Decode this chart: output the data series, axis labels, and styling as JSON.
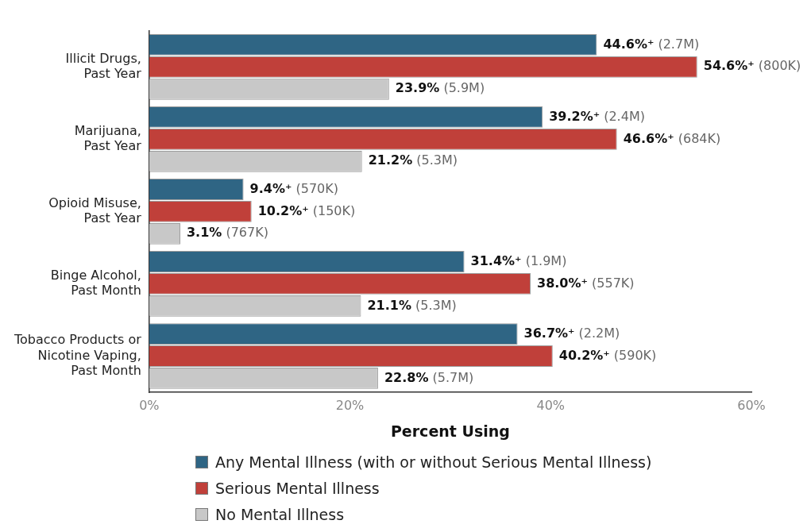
{
  "chart_data": {
    "type": "bar",
    "orientation": "horizontal",
    "categories": [
      "Illicit Drugs, Past Year",
      "Marijuana, Past Year",
      "Opioid Misuse, Past Year",
      "Binge Alcohol, Past Month",
      "Tobacco Products or Nicotine Vaping, Past Month"
    ],
    "series": [
      {
        "name": "Any Mental Illness (with or without Serious Mental Illness)",
        "color": "#2f6584",
        "values": [
          44.6,
          39.2,
          9.4,
          31.4,
          36.7
        ],
        "value_labels": [
          "44.6%⁺ (2.7M)",
          "39.2%⁺ (2.4M)",
          "9.4%⁺ (570K)",
          "31.4%⁺ (1.9M)",
          "36.7%⁺ (2.2M)"
        ]
      },
      {
        "name": "Serious Mental Illness",
        "color": "#c0403a",
        "values": [
          54.6,
          46.6,
          10.2,
          38.0,
          40.2
        ],
        "value_labels": [
          "54.6%⁺ (800K)",
          "46.6%⁺ (684K)",
          "10.2%⁺ (150K)",
          "38.0%⁺ (557K)",
          "40.2%⁺ (590K)"
        ]
      },
      {
        "name": "No Mental Illness",
        "color": "#c8c8c8",
        "values": [
          23.9,
          21.2,
          3.1,
          21.1,
          22.8
        ],
        "value_labels": [
          "23.9% (5.9M)",
          "21.2% (5.3M)",
          "3.1% (767K)",
          "21.1% (5.3M)",
          "22.8% (5.7M)"
        ]
      }
    ],
    "xlim": [
      0,
      60
    ],
    "xticks": [
      {
        "value": 0,
        "label": "0%"
      },
      {
        "value": 20,
        "label": "20%"
      },
      {
        "value": 40,
        "label": "40%"
      },
      {
        "value": 60,
        "label": "60%"
      }
    ],
    "xlabel": "Percent Using",
    "grid": false,
    "legend": "bottom"
  }
}
